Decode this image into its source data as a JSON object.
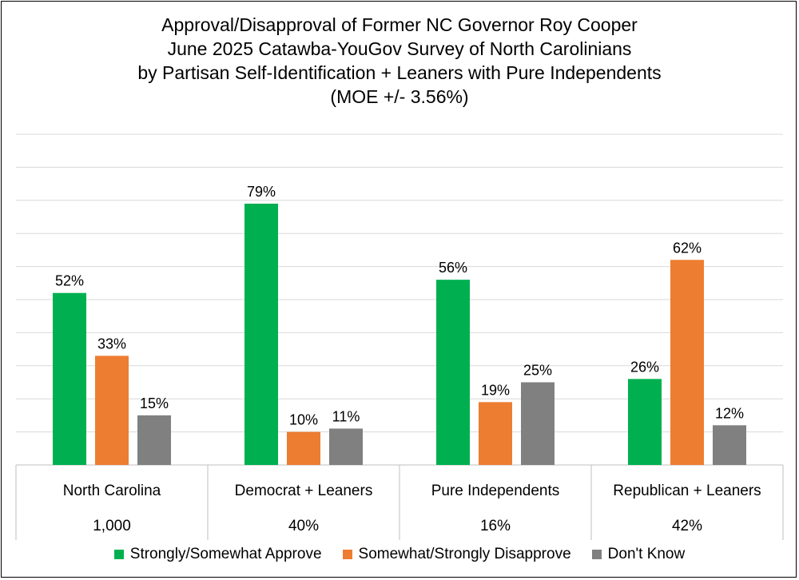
{
  "chart_data": {
    "type": "bar",
    "title": [
      "Approval/Disapproval of Former NC Governor Roy Cooper",
      "June 2025 Catawba-YouGov Survey of North Carolinians",
      "by Partisan Self-Identification + Leaners with Pure Independents",
      "(MOE +/- 3.56%)"
    ],
    "categories": [
      "North Carolina",
      "Democrat + Leaners",
      "Pure Independents",
      "Republican + Leaners"
    ],
    "category_shares": [
      "1,000",
      "40%",
      "16%",
      "42%"
    ],
    "series": [
      {
        "name": "Strongly/Somewhat Approve",
        "color": "#00b050",
        "values": [
          52,
          79,
          56,
          26
        ],
        "labels": [
          "52%",
          "79%",
          "56%",
          "26%"
        ]
      },
      {
        "name": "Somewhat/Strongly Disapprove",
        "color": "#ed7d31",
        "values": [
          33,
          10,
          19,
          62
        ],
        "labels": [
          "33%",
          "10%",
          "19%",
          "62%"
        ]
      },
      {
        "name": "Don't Know",
        "color": "#808080",
        "values": [
          15,
          11,
          25,
          12
        ],
        "labels": [
          "15%",
          "11%",
          "25%",
          "12%"
        ]
      }
    ],
    "ylim": [
      0,
      100
    ],
    "grid": true,
    "legend_position": "bottom"
  }
}
